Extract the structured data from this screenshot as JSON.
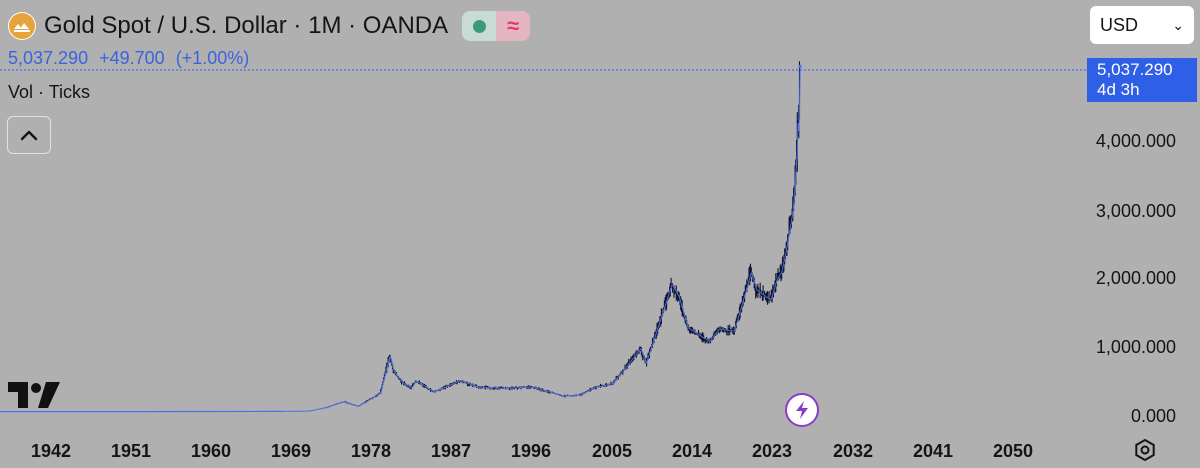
{
  "header": {
    "title": "Gold Spot / U.S. Dollar · 1M · OANDA",
    "status_wave_glyph": "≈"
  },
  "price": {
    "last": "5,037.290",
    "change": "+49.700",
    "change_pct": "(+1.00%)"
  },
  "indicator": {
    "label": "Vol · Ticks"
  },
  "currency": {
    "selected": "USD"
  },
  "price_badge": {
    "value": "5,037.290",
    "countdown": "4d 3h"
  },
  "colors": {
    "background": "#b0b0b0",
    "accent": "#2e5fe6",
    "price_text": "#3a63e0",
    "candles": "#10142a",
    "line": "#4a6ff0",
    "status_green": "#3a9b7b",
    "status_red": "#e23a62"
  },
  "icons": {
    "logo": "gold-coins-icon",
    "collapse": "chevron-up-icon",
    "brand": "tradingview-logo",
    "bolt": "lightning-bolt-icon",
    "settings": "gear-icon"
  },
  "chart_data": {
    "type": "line",
    "title": "Gold Spot / U.S. Dollar · 1M · OANDA",
    "x_axis": {
      "ticks": [
        "1942",
        "1951",
        "1960",
        "1969",
        "1978",
        "1987",
        "1996",
        "2005",
        "2014",
        "2023",
        "2032",
        "2041",
        "2050"
      ]
    },
    "y_axis": {
      "ticks": [
        "0.000",
        "1,000.000",
        "2,000.000",
        "3,000.000",
        "4,000.000"
      ],
      "range": [
        0,
        5037.29
      ]
    },
    "grid": false,
    "series": [
      {
        "x": [
          1933,
          1950,
          1968,
          1971,
          1973,
          1974.9,
          1976.5,
          1979,
          1980.05,
          1980.5,
          1981.5,
          1982.5,
          1983,
          1985,
          1987.9,
          1990,
          1993,
          1996,
          1999.6,
          2001.3,
          2003,
          2005,
          2006.4,
          2008.2,
          2008.8,
          2010,
          2011.7,
          2012.5,
          2013.5,
          2015.9,
          2017,
          2018.7,
          2020.6,
          2021.2,
          2022.8,
          2023.5,
          2024.0,
          2024.5,
          2024.9,
          2025.3,
          2025.5,
          2025.75,
          2025.85,
          2025.95,
          2026.08
        ],
        "y": [
          35,
          35,
          38,
          42,
          95,
          180,
          110,
          300,
          850,
          620,
          450,
          380,
          480,
          320,
          480,
          390,
          370,
          390,
          260,
          270,
          380,
          440,
          650,
          950,
          730,
          1200,
          1880,
          1700,
          1250,
          1050,
          1230,
          1200,
          2050,
          1800,
          1650,
          1950,
          2050,
          2350,
          2650,
          2950,
          3300,
          3800,
          4300,
          4000,
          5037.29
        ]
      }
    ]
  }
}
